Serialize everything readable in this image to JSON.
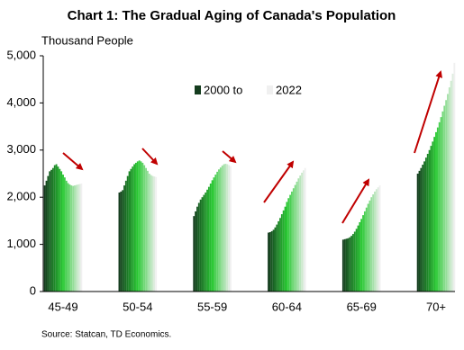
{
  "chart_data": {
    "type": "bar",
    "title": "Chart 1: The Gradual Aging of Canada's Population",
    "y_label": "Thousand People",
    "source": "Source:  Statcan, TD Economics.",
    "legend": [
      "2000 to",
      "2022"
    ],
    "categories": [
      "45-49",
      "50-54",
      "55-59",
      "60-64",
      "65-69",
      "70+"
    ],
    "ylim": [
      0,
      5000
    ],
    "yticks": [
      0,
      {
        "value": 1000,
        "label": "1,000"
      },
      {
        "value": 2000,
        "label": "2,000"
      },
      {
        "value": 3000,
        "label": "3,000"
      },
      {
        "value": 4000,
        "label": "4,000"
      },
      {
        "value": 5000,
        "label": "5,000"
      }
    ],
    "series": [
      {
        "color": "#143c1e",
        "values": [
          2250,
          2100,
          1600,
          1250,
          1100,
          2500
        ]
      },
      {
        "color": "#16491f",
        "values": [
          2350,
          2120,
          1700,
          1260,
          1110,
          2560
        ]
      },
      {
        "color": "#185622",
        "values": [
          2450,
          2150,
          1800,
          1280,
          1120,
          2620
        ]
      },
      {
        "color": "#196224",
        "values": [
          2550,
          2250,
          1880,
          1310,
          1130,
          2690
        ]
      },
      {
        "color": "#1b6f25",
        "values": [
          2580,
          2350,
          1950,
          1360,
          1150,
          2760
        ]
      },
      {
        "color": "#1d7c27",
        "values": [
          2620,
          2450,
          2000,
          1420,
          1180,
          2840
        ]
      },
      {
        "color": "#1f8829",
        "values": [
          2680,
          2550,
          2050,
          1490,
          1220,
          2920
        ]
      },
      {
        "color": "#21952b",
        "values": [
          2700,
          2600,
          2100,
          1560,
          1270,
          3000
        ]
      },
      {
        "color": "#22a22c",
        "values": [
          2650,
          2650,
          2160,
          1640,
          1330,
          3090
        ]
      },
      {
        "color": "#24ae2e",
        "values": [
          2600,
          2700,
          2220,
          1720,
          1400,
          3180
        ]
      },
      {
        "color": "#26bb30",
        "values": [
          2550,
          2730,
          2290,
          1800,
          1470,
          3280
        ]
      },
      {
        "color": "#28c832",
        "values": [
          2480,
          2760,
          2360,
          1900,
          1540,
          3380
        ]
      },
      {
        "color": "#3acc43",
        "values": [
          2420,
          2780,
          2420,
          1980,
          1620,
          3480
        ]
      },
      {
        "color": "#4ccf55",
        "values": [
          2350,
          2760,
          2480,
          2050,
          1700,
          3590
        ]
      },
      {
        "color": "#5fd366",
        "values": [
          2300,
          2730,
          2540,
          2120,
          1780,
          3700
        ]
      },
      {
        "color": "#71d777",
        "values": [
          2270,
          2680,
          2590,
          2190,
          1860,
          3820
        ]
      },
      {
        "color": "#83da88",
        "values": [
          2250,
          2620,
          2630,
          2260,
          1930,
          3940
        ]
      },
      {
        "color": "#95de9a",
        "values": [
          2240,
          2560,
          2670,
          2330,
          2000,
          4060
        ]
      },
      {
        "color": "#a7e1ab",
        "values": [
          2250,
          2500,
          2700,
          2400,
          2060,
          4190
        ]
      },
      {
        "color": "#b9e5bc",
        "values": [
          2260,
          2470,
          2710,
          2460,
          2120,
          4330
        ]
      },
      {
        "color": "#cce9cd",
        "values": [
          2270,
          2450,
          2700,
          2520,
          2170,
          4470
        ]
      },
      {
        "color": "#deecdf",
        "values": [
          2280,
          2440,
          2680,
          2570,
          2210,
          4620
        ]
      },
      {
        "color": "#f0f0f0",
        "values": [
          2290,
          2430,
          2660,
          2620,
          2250,
          4850
        ]
      }
    ]
  }
}
